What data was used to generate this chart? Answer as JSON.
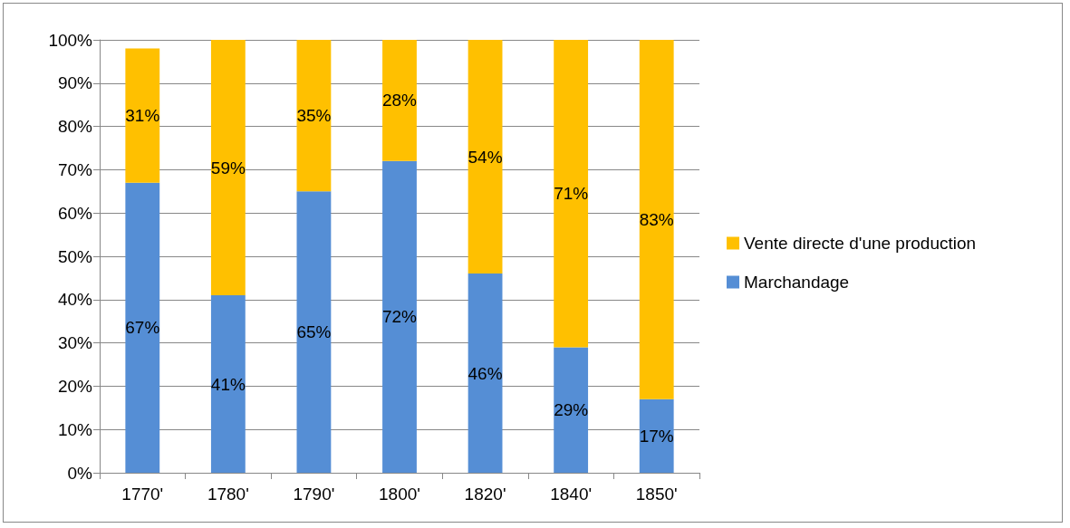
{
  "chart_data": {
    "type": "bar",
    "stacked": true,
    "categories": [
      "1770'",
      "1780'",
      "1790'",
      "1800'",
      "1820'",
      "1840'",
      "1850'"
    ],
    "series": [
      {
        "name": "Marchandage",
        "color": "#558ed5",
        "values": [
          67,
          41,
          65,
          72,
          46,
          29,
          17
        ],
        "value_labels": [
          "67%",
          "41%",
          "65%",
          "72%",
          "46%",
          "29%",
          "17%"
        ]
      },
      {
        "name": "Vente directe d'une production",
        "color": "#ffc000",
        "values": [
          31,
          59,
          35,
          28,
          54,
          71,
          83
        ],
        "value_labels": [
          "31%",
          "59%",
          "35%",
          "28%",
          "54%",
          "71%",
          "83%"
        ]
      }
    ],
    "ylim": [
      0,
      100
    ],
    "yticks": [
      {
        "value": 0,
        "label": "0%"
      },
      {
        "value": 10,
        "label": "10%"
      },
      {
        "value": 20,
        "label": "20%"
      },
      {
        "value": 30,
        "label": "30%"
      },
      {
        "value": 40,
        "label": "40%"
      },
      {
        "value": 50,
        "label": "50%"
      },
      {
        "value": 60,
        "label": "60%"
      },
      {
        "value": 70,
        "label": "70%"
      },
      {
        "value": 80,
        "label": "80%"
      },
      {
        "value": 90,
        "label": "90%"
      },
      {
        "value": 100,
        "label": "100%"
      }
    ],
    "grid": "y",
    "legend": "right"
  }
}
